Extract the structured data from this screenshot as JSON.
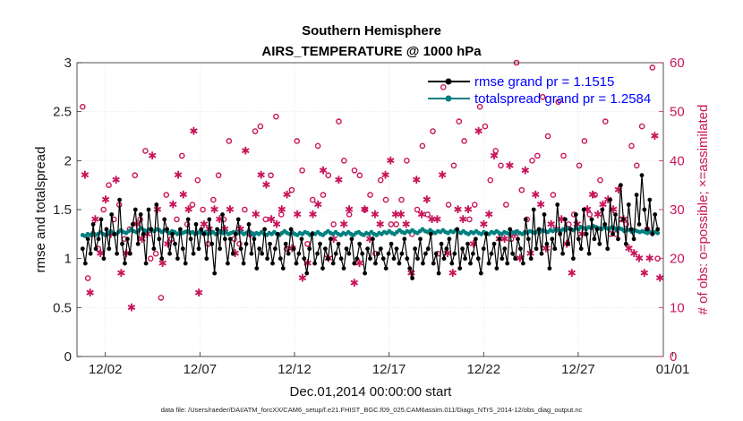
{
  "chart_data": {
    "type": "line",
    "title": "Southern Hemisphere",
    "subtitle": "AIRS_TEMPERATURE @ 1000 hPa",
    "xlabel": "Dec.01,2014 00:00:00 start",
    "ylabel": "rmse and totalspread",
    "y2label": "# of obs: o=possible; ×=assimilated",
    "footnote": "data file: /Users/raeder/DAI/ATM_forcXX/CAM6_setup/f.e21.FHIST_BGC.f09_025.CAM6assim.011/Diags_NTrS_2014-12/obs_diag_output.nc",
    "xlim": [
      0.5,
      31.5
    ],
    "ylim": [
      0,
      3
    ],
    "y2lim": [
      0,
      60
    ],
    "x_ticks": [
      2,
      7,
      12,
      17,
      22,
      27,
      32
    ],
    "x_tick_labels": [
      "12/02",
      "12/07",
      "12/12",
      "12/17",
      "12/22",
      "12/27",
      "01/01"
    ],
    "y_ticks": [
      "0",
      "0.5",
      "1",
      "1.5",
      "2",
      "2.5",
      "3"
    ],
    "y2_ticks": [
      "0",
      "10",
      "20",
      "30",
      "40",
      "50",
      "60"
    ],
    "grid": true,
    "legend_position": "top-right",
    "colors": {
      "rmse": "#000000",
      "spread": "#008080",
      "obs": "#c8145a"
    },
    "series": [
      {
        "name": "rmse grand pr = 1.1515",
        "axis": "left",
        "values": [
          1.1,
          0.95,
          1.2,
          1.05,
          1.35,
          1.1,
          1.2,
          1.4,
          1.0,
          1.3,
          1.1,
          1.45,
          1.25,
          1.05,
          1.6,
          1.15,
          0.95,
          1.2,
          1.05,
          1.35,
          1.5,
          1.15,
          1.45,
          1.25,
          0.95,
          1.5,
          1.3,
          1.1,
          1.55,
          1.2,
          1.0,
          1.4,
          1.3,
          1.05,
          1.25,
          1.15,
          1.0,
          1.3,
          1.1,
          0.95,
          1.4,
          1.2,
          1.05,
          1.35,
          1.1,
          1.3,
          1.25,
          1.0,
          1.4,
          1.15,
          0.85,
          1.3,
          1.1,
          1.45,
          1.2,
          0.95,
          1.2,
          1.05,
          1.25,
          1.4,
          1.1,
          0.95,
          1.15,
          1.35,
          1.05,
          1.2,
          0.9,
          1.1,
          1.05,
          1.3,
          1.0,
          1.15,
          0.95,
          1.1,
          1.25,
          1.0,
          0.9,
          1.15,
          1.05,
          1.3,
          1.1,
          0.95,
          1.05,
          1.2,
          1.0,
          0.85,
          1.1,
          1.25,
          0.95,
          1.05,
          1.15,
          0.9,
          1.1,
          1.0,
          1.2,
          0.95,
          1.05,
          1.15,
          1.0,
          0.9,
          1.1,
          1.05,
          1.2,
          0.95,
          1.0,
          1.15,
          1.05,
          0.85,
          1.1,
          1.0,
          1.2,
          0.95,
          1.05,
          1.1,
          1.0,
          0.9,
          1.05,
          1.15,
          1.0,
          1.1,
          0.95,
          1.05,
          1.2,
          1.0,
          0.9,
          0.8,
          1.1,
          1.0,
          1.2,
          0.95,
          1.05,
          1.1,
          1.25,
          0.95,
          1.05,
          0.85,
          1.15,
          1.0,
          1.1,
          1.2,
          0.95,
          1.05,
          1.3,
          0.9,
          1.1,
          1.0,
          1.15,
          0.95,
          1.05,
          1.2,
          1.0,
          0.85,
          1.1,
          1.25,
          0.95,
          1.05,
          1.15,
          0.9,
          1.2,
          1.0,
          1.1,
          0.95,
          1.3,
          1.05,
          1.0,
          1.2,
          1.1,
          0.95,
          1.4,
          1.2,
          1.0,
          1.5,
          1.1,
          1.3,
          1.05,
          1.45,
          1.15,
          0.9,
          1.2,
          1.1,
          1.55,
          1.25,
          1.05,
          1.4,
          1.15,
          1.3,
          1.0,
          1.45,
          1.2,
          1.1,
          1.5,
          1.25,
          1.05,
          1.4,
          1.2,
          1.3,
          1.15,
          1.5,
          1.35,
          1.1,
          1.6,
          1.25,
          1.45,
          1.2,
          1.75,
          1.4,
          1.15,
          1.55,
          1.3,
          1.2,
          1.65,
          1.35,
          1.85,
          1.5,
          1.3,
          1.6,
          1.25,
          1.45,
          1.3
        ]
      },
      {
        "name": "totalspread grand pr = 1.2584",
        "axis": "left",
        "values": [
          1.24,
          1.23,
          1.25,
          1.24,
          1.26,
          1.24,
          1.25,
          1.27,
          1.25,
          1.24,
          1.26,
          1.28,
          1.26,
          1.25,
          1.27,
          1.29,
          1.27,
          1.26,
          1.28,
          1.3,
          1.28,
          1.27,
          1.29,
          1.31,
          1.29,
          1.28,
          1.3,
          1.29,
          1.28,
          1.3,
          1.29,
          1.27,
          1.29,
          1.28,
          1.26,
          1.28,
          1.27,
          1.25,
          1.27,
          1.26,
          1.27,
          1.28,
          1.26,
          1.27,
          1.25,
          1.26,
          1.28,
          1.26,
          1.27,
          1.25,
          1.26,
          1.27,
          1.25,
          1.26,
          1.28,
          1.26,
          1.27,
          1.25,
          1.26,
          1.27,
          1.25,
          1.26,
          1.27,
          1.25,
          1.26,
          1.28,
          1.26,
          1.24,
          1.26,
          1.25,
          1.27,
          1.25,
          1.24,
          1.26,
          1.25,
          1.27,
          1.25,
          1.24,
          1.26,
          1.28,
          1.26,
          1.25,
          1.27,
          1.25,
          1.24,
          1.26,
          1.25,
          1.27,
          1.26,
          1.24,
          1.26,
          1.25,
          1.27,
          1.25,
          1.24,
          1.26,
          1.28,
          1.26,
          1.25,
          1.27,
          1.25,
          1.24,
          1.26,
          1.25,
          1.27,
          1.25,
          1.24,
          1.26,
          1.27,
          1.25,
          1.24,
          1.26,
          1.25,
          1.27,
          1.25,
          1.24,
          1.26,
          1.25,
          1.27,
          1.26,
          1.28,
          1.26,
          1.25,
          1.27,
          1.29,
          1.27,
          1.26,
          1.28,
          1.27,
          1.29,
          1.27,
          1.26,
          1.28,
          1.3,
          1.28,
          1.27,
          1.29,
          1.27,
          1.26,
          1.28,
          1.27,
          1.29,
          1.27,
          1.26,
          1.28,
          1.27,
          1.29,
          1.27,
          1.26,
          1.28,
          1.26,
          1.25,
          1.27,
          1.26,
          1.28,
          1.26,
          1.25,
          1.27,
          1.26,
          1.25,
          1.27,
          1.26,
          1.28,
          1.26,
          1.25,
          1.27,
          1.26,
          1.25,
          1.27,
          1.26,
          1.28,
          1.26,
          1.25,
          1.27,
          1.26,
          1.28,
          1.27,
          1.26,
          1.28,
          1.27,
          1.29,
          1.28,
          1.27,
          1.29,
          1.28,
          1.3,
          1.29,
          1.28,
          1.3,
          1.29,
          1.31,
          1.3,
          1.29,
          1.31,
          1.3,
          1.32,
          1.31,
          1.3,
          1.32,
          1.31,
          1.33,
          1.32,
          1.31,
          1.3,
          1.32,
          1.31,
          1.3,
          1.32,
          1.31,
          1.29,
          1.31,
          1.3,
          1.28,
          1.3,
          1.29,
          1.27,
          1.29,
          1.28,
          1.27,
          1.28,
          1.27,
          1.26,
          1.27,
          1.26,
          1.27,
          1.26
        ]
      },
      {
        "name": "obs possible (o)",
        "axis": "right",
        "values": [
          51,
          16,
          25,
          22,
          30,
          35,
          28,
          31,
          24,
          26,
          37,
          28,
          42,
          20,
          21,
          12,
          33,
          24,
          28,
          41,
          27,
          31,
          36,
          30,
          23,
          32,
          37,
          28,
          44,
          24,
          23,
          30,
          25,
          46,
          47,
          28,
          37,
          49,
          29,
          22,
          34,
          44,
          38,
          23,
          32,
          43,
          33,
          37,
          27,
          48,
          40,
          29,
          38,
          37,
          30,
          33,
          21,
          36,
          32,
          27,
          27,
          32,
          40,
          25,
          30,
          43,
          29,
          46,
          21,
          55,
          31,
          39,
          48,
          44,
          28,
          31,
          51,
          47,
          36,
          42,
          39,
          31,
          24,
          60,
          34,
          28,
          40,
          41,
          53,
          45,
          33,
          52,
          41,
          27,
          29,
          39,
          44,
          29,
          33,
          36,
          48,
          25,
          25,
          28,
          27,
          43,
          39,
          47,
          26,
          59,
          20
        ]
      },
      {
        "name": "obs assimilated (×)",
        "axis": "right",
        "values": [
          37,
          13,
          28,
          21,
          32,
          25,
          36,
          17,
          21,
          10,
          27,
          24,
          25,
          41,
          30,
          19,
          23,
          31,
          37,
          33,
          30,
          46,
          13,
          27,
          26,
          30,
          28,
          26,
          30,
          21,
          26,
          42,
          25,
          29,
          37,
          35,
          28,
          27,
          30,
          33,
          22,
          29,
          16,
          19,
          29,
          31,
          38,
          20,
          24,
          36,
          27,
          30,
          15,
          19,
          30,
          24,
          29,
          27,
          37,
          40,
          29,
          29,
          27,
          17,
          36,
          29,
          32,
          28,
          28,
          37,
          21,
          17,
          30,
          28,
          30,
          23,
          46,
          27,
          29,
          41,
          24,
          24,
          39,
          25,
          20,
          38,
          21,
          33,
          31,
          22,
          27,
          26,
          28,
          23,
          17,
          27,
          25,
          30,
          33,
          29,
          31,
          32,
          30,
          34,
          28,
          22,
          21,
          20,
          17,
          20,
          45,
          16
        ]
      }
    ]
  }
}
